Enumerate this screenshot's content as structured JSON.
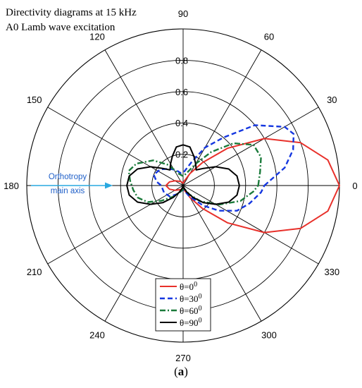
{
  "chart_data": {
    "type": "polar-line",
    "title": "Directivity diagrams at 15 kHz",
    "subtitle": "A0 Lamb wave excitation",
    "caption_prefix": "(",
    "caption_label": "a",
    "caption_suffix": ")",
    "angle_unit": "degrees",
    "angle_ticks": [
      "0",
      "30",
      "60",
      "90",
      "120",
      "150",
      "180",
      "210",
      "240",
      "270",
      "300",
      "330"
    ],
    "radial_ticks": [
      "0.2",
      "0.4",
      "0.6",
      "0.8"
    ],
    "rlim": [
      0,
      1
    ],
    "grid": true,
    "legend_position": "bottom-center",
    "annotation": {
      "line1": "Orthotropy",
      "line2": "main axis",
      "angle_deg": 180,
      "color": "#1f5fc8",
      "arrow_color": "#29a8e0"
    },
    "series": [
      {
        "name": "θ=0",
        "name_sup": "0",
        "color": "#e8302a",
        "dash": "solid",
        "points": [
          [
            0,
            1.0
          ],
          [
            10,
            0.94
          ],
          [
            20,
            0.8
          ],
          [
            30,
            0.6
          ],
          [
            40,
            0.37
          ],
          [
            50,
            0.19
          ],
          [
            60,
            0.09
          ],
          [
            75,
            0.03
          ],
          [
            90,
            0.015
          ],
          [
            120,
            0.03
          ],
          [
            150,
            0.06
          ],
          [
            165,
            0.09
          ],
          [
            180,
            0.11
          ],
          [
            195,
            0.09
          ],
          [
            210,
            0.06
          ],
          [
            240,
            0.03
          ],
          [
            270,
            0.015
          ],
          [
            285,
            0.03
          ],
          [
            300,
            0.09
          ],
          [
            310,
            0.19
          ],
          [
            320,
            0.37
          ],
          [
            330,
            0.6
          ],
          [
            340,
            0.8
          ],
          [
            350,
            0.94
          ],
          [
            360,
            1.0
          ]
        ]
      },
      {
        "name": "θ=30",
        "name_sup": "0",
        "color": "#1537e0",
        "dash": "dashed",
        "points": [
          [
            0,
            0.52
          ],
          [
            10,
            0.66
          ],
          [
            18,
            0.74
          ],
          [
            25,
            0.78
          ],
          [
            30,
            0.75
          ],
          [
            40,
            0.6
          ],
          [
            50,
            0.4
          ],
          [
            60,
            0.28
          ],
          [
            70,
            0.16
          ],
          [
            85,
            0.09
          ],
          [
            100,
            0.08
          ],
          [
            115,
            0.11
          ],
          [
            130,
            0.14
          ],
          [
            145,
            0.18
          ],
          [
            160,
            0.2
          ],
          [
            172,
            0.17
          ],
          [
            180,
            0.14
          ],
          [
            200,
            0.13
          ],
          [
            220,
            0.11
          ],
          [
            240,
            0.06
          ],
          [
            260,
            0.03
          ],
          [
            280,
            0.03
          ],
          [
            300,
            0.08
          ],
          [
            315,
            0.18
          ],
          [
            325,
            0.28
          ],
          [
            335,
            0.38
          ],
          [
            345,
            0.44
          ],
          [
            355,
            0.5
          ],
          [
            360,
            0.52
          ]
        ]
      },
      {
        "name": "θ=60",
        "name_sup": "0",
        "color": "#1a7a3a",
        "dash": "dashdot",
        "points": [
          [
            0,
            0.48
          ],
          [
            10,
            0.5
          ],
          [
            20,
            0.53
          ],
          [
            30,
            0.52
          ],
          [
            40,
            0.42
          ],
          [
            50,
            0.28
          ],
          [
            60,
            0.16
          ],
          [
            75,
            0.08
          ],
          [
            90,
            0.06
          ],
          [
            110,
            0.08
          ],
          [
            125,
            0.16
          ],
          [
            140,
            0.25
          ],
          [
            155,
            0.33
          ],
          [
            165,
            0.36
          ],
          [
            175,
            0.34
          ],
          [
            185,
            0.32
          ],
          [
            195,
            0.3
          ],
          [
            205,
            0.25
          ],
          [
            215,
            0.17
          ],
          [
            230,
            0.09
          ],
          [
            260,
            0.03
          ],
          [
            290,
            0.02
          ],
          [
            305,
            0.07
          ],
          [
            318,
            0.15
          ],
          [
            332,
            0.26
          ],
          [
            345,
            0.38
          ],
          [
            355,
            0.45
          ],
          [
            360,
            0.48
          ]
        ]
      },
      {
        "name": "θ=90",
        "name_sup": "0",
        "color": "#000000",
        "dash": "solid",
        "points": [
          [
            0,
            0.36
          ],
          [
            10,
            0.35
          ],
          [
            20,
            0.31
          ],
          [
            30,
            0.24
          ],
          [
            40,
            0.17
          ],
          [
            50,
            0.13
          ],
          [
            60,
            0.16
          ],
          [
            70,
            0.2
          ],
          [
            80,
            0.25
          ],
          [
            90,
            0.26
          ],
          [
            100,
            0.25
          ],
          [
            110,
            0.2
          ],
          [
            120,
            0.16
          ],
          [
            130,
            0.13
          ],
          [
            140,
            0.17
          ],
          [
            150,
            0.24
          ],
          [
            160,
            0.31
          ],
          [
            170,
            0.35
          ],
          [
            180,
            0.36
          ],
          [
            190,
            0.35
          ],
          [
            200,
            0.31
          ],
          [
            210,
            0.24
          ],
          [
            220,
            0.17
          ],
          [
            230,
            0.1
          ],
          [
            240,
            0.05
          ],
          [
            250,
            0.02
          ],
          [
            270,
            0.01
          ],
          [
            290,
            0.02
          ],
          [
            300,
            0.05
          ],
          [
            310,
            0.1
          ],
          [
            320,
            0.17
          ],
          [
            330,
            0.24
          ],
          [
            340,
            0.31
          ],
          [
            350,
            0.35
          ],
          [
            360,
            0.36
          ]
        ]
      }
    ]
  }
}
